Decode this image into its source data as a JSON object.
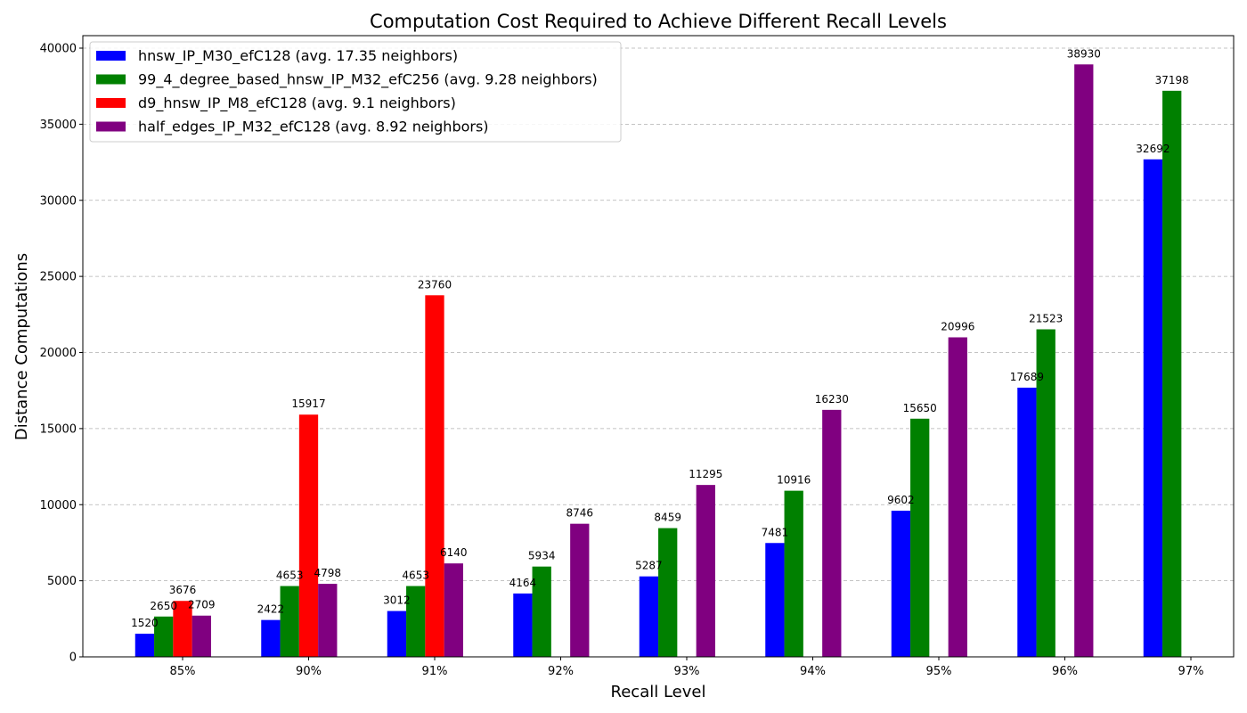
{
  "chart_data": {
    "type": "bar",
    "title": "Computation Cost Required to Achieve Different Recall Levels",
    "xlabel": "Recall Level",
    "ylabel": "Distance Computations",
    "categories": [
      "85%",
      "90%",
      "91%",
      "92%",
      "93%",
      "94%",
      "95%",
      "96%",
      "97%"
    ],
    "ylim": [
      0,
      40820
    ],
    "yticks": [
      0,
      5000,
      10000,
      15000,
      20000,
      25000,
      30000,
      35000,
      40000
    ],
    "grid": "y dashed",
    "legend_position": "top-left",
    "series": [
      {
        "name": "hnsw_IP_M30_efC128 (avg. 17.35 neighbors)",
        "color": "#0000ff",
        "values": [
          1520,
          2422,
          3012,
          4164,
          5287,
          7481,
          9602,
          17689,
          32692
        ]
      },
      {
        "name": "99_4_degree_based_hnsw_IP_M32_efC256 (avg. 9.28 neighbors)",
        "color": "#008000",
        "values": [
          2650,
          4653,
          4653,
          5934,
          8459,
          10916,
          15650,
          21523,
          37198
        ]
      },
      {
        "name": "d9_hnsw_IP_M8_efC128 (avg. 9.1 neighbors)",
        "color": "#ff0000",
        "values": [
          3676,
          15917,
          23760,
          null,
          null,
          null,
          null,
          null,
          null
        ]
      },
      {
        "name": "half_edges_IP_M32_efC128 (avg. 8.92 neighbors)",
        "color": "#800080",
        "values": [
          2709,
          4798,
          6140,
          8746,
          11295,
          16230,
          20996,
          38930,
          null
        ]
      }
    ]
  }
}
